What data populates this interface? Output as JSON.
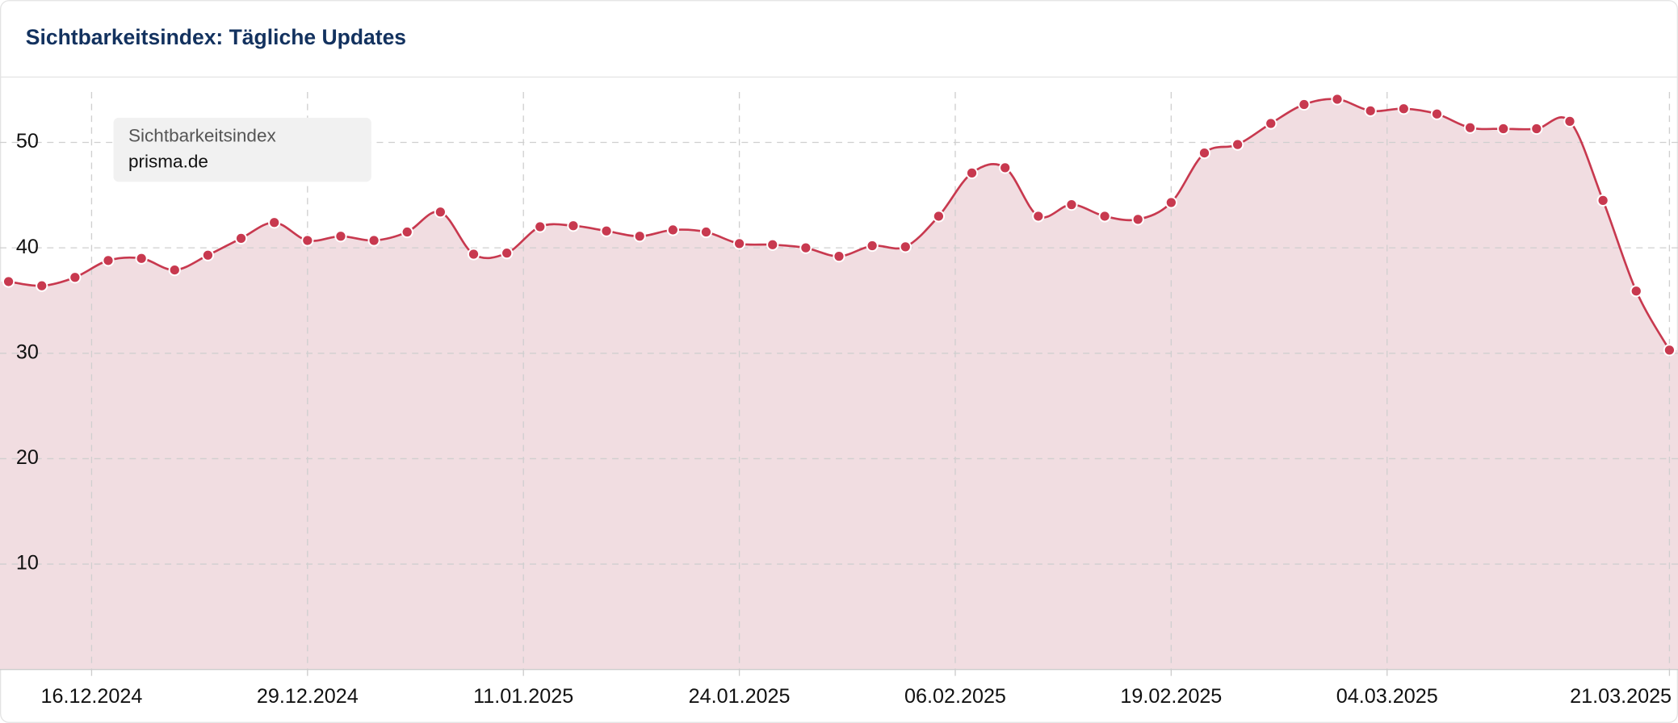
{
  "chart_data": {
    "type": "area",
    "title": "Sichtbarkeitsindex: Tägliche Updates",
    "legend": {
      "title": "Sichtbarkeitsindex",
      "position": "upper-left"
    },
    "x": [
      "11.12.2024",
      "13.12.2024",
      "15.12.2024",
      "17.12.2024",
      "19.12.2024",
      "21.12.2024",
      "23.12.2024",
      "25.12.2024",
      "27.12.2024",
      "29.12.2024",
      "31.12.2024",
      "02.01.2025",
      "04.01.2025",
      "06.01.2025",
      "08.01.2025",
      "10.01.2025",
      "12.01.2025",
      "14.01.2025",
      "16.01.2025",
      "18.01.2025",
      "20.01.2025",
      "22.01.2025",
      "24.01.2025",
      "26.01.2025",
      "28.01.2025",
      "30.01.2025",
      "01.02.2025",
      "03.02.2025",
      "05.02.2025",
      "07.02.2025",
      "09.02.2025",
      "11.02.2025",
      "13.02.2025",
      "15.02.2025",
      "17.02.2025",
      "19.02.2025",
      "21.02.2025",
      "23.02.2025",
      "25.02.2025",
      "27.02.2025",
      "01.03.2025",
      "03.03.2025",
      "05.03.2025",
      "07.03.2025",
      "09.03.2025",
      "11.03.2025",
      "13.03.2025",
      "15.03.2025",
      "17.03.2025",
      "19.03.2025",
      "21.03.2025"
    ],
    "series": [
      {
        "name": "prisma.de",
        "color": "#c8394f",
        "fill": "#f1dde1",
        "values": [
          36.8,
          36.4,
          37.2,
          38.8,
          39.0,
          37.9,
          39.3,
          40.9,
          42.4,
          40.7,
          41.1,
          40.7,
          41.5,
          43.4,
          39.4,
          39.5,
          42.0,
          42.1,
          41.6,
          41.1,
          41.7,
          41.5,
          40.4,
          40.3,
          40.0,
          39.2,
          40.2,
          40.1,
          43.0,
          47.1,
          47.6,
          43.0,
          44.1,
          43.0,
          42.7,
          44.3,
          49.0,
          49.8,
          51.8,
          53.6,
          54.1,
          53.0,
          53.2,
          52.7,
          51.4,
          51.3,
          51.3,
          52.0,
          44.5,
          35.9,
          30.3
        ]
      }
    ],
    "xticks": [
      "16.12.2024",
      "29.12.2024",
      "11.01.2025",
      "24.01.2025",
      "06.02.2025",
      "19.02.2025",
      "04.03.2025",
      "21.03.2025"
    ],
    "ylim": [
      0,
      56
    ],
    "yticks": [
      10,
      20,
      30,
      40,
      50
    ],
    "grid": true
  }
}
